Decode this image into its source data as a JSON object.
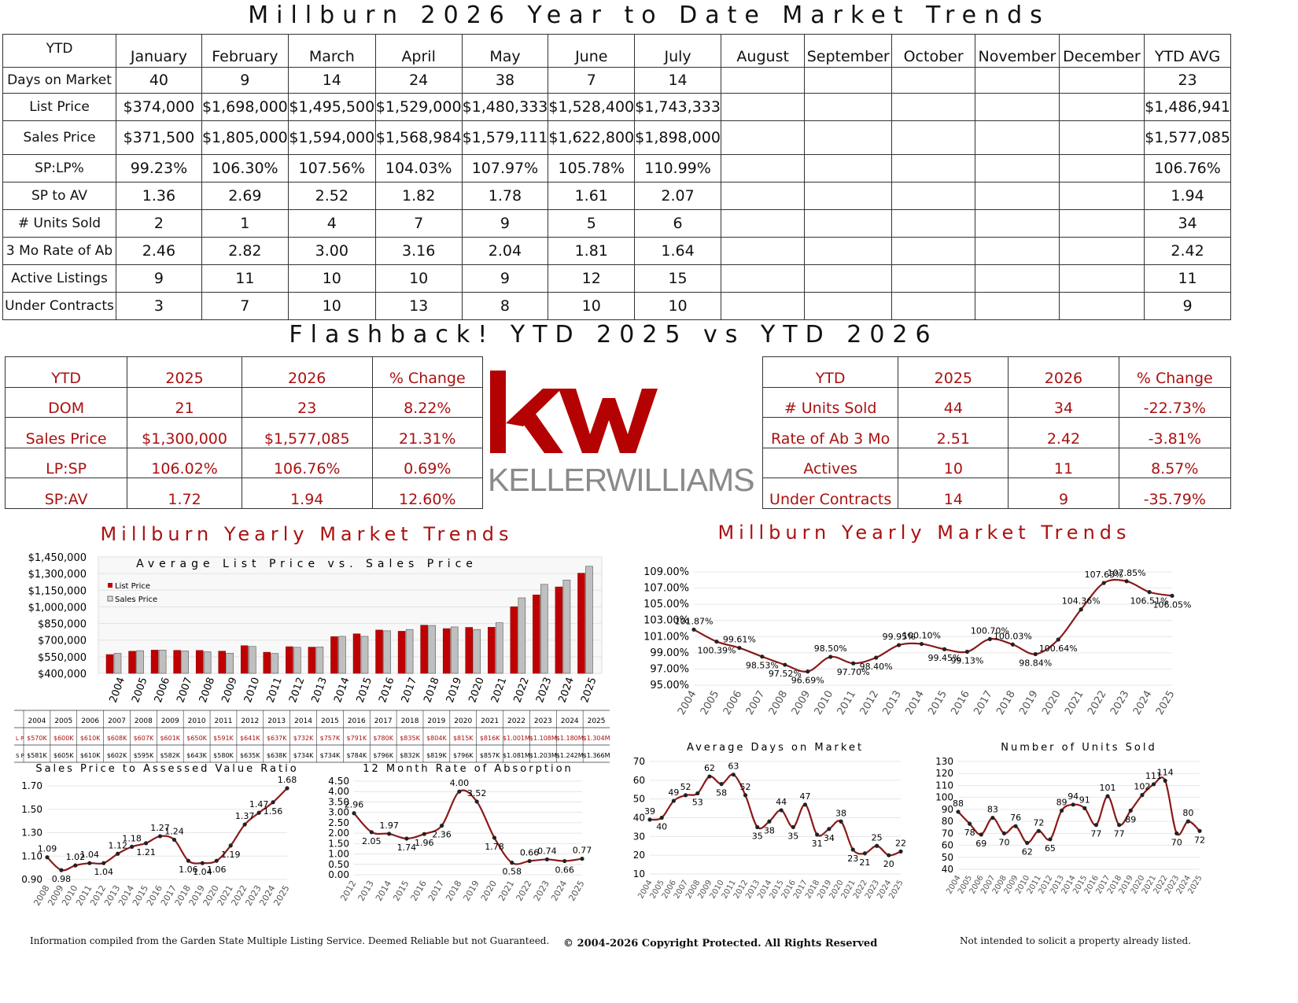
{
  "page_title": "Millburn 2026 Year to Date Market Trends",
  "ytd_table": {
    "corner": "YTD",
    "months": [
      "January",
      "February",
      "March",
      "April",
      "May",
      "June",
      "July",
      "August",
      "September",
      "October",
      "November",
      "December",
      "YTD AVG"
    ],
    "rows": [
      {
        "label": "Days on Market",
        "values": [
          "40",
          "9",
          "14",
          "24",
          "38",
          "7",
          "14",
          "",
          "",
          "",
          "",
          "",
          "23"
        ]
      },
      {
        "label": "List Price",
        "values": [
          "$374,000",
          "$1,698,000",
          "$1,495,500",
          "$1,529,000",
          "$1,480,333",
          "$1,528,400",
          "$1,743,333",
          "",
          "",
          "",
          "",
          "",
          "$1,486,941"
        ]
      },
      {
        "label": "Sales Price",
        "values": [
          "$371,500",
          "$1,805,000",
          "$1,594,000",
          "$1,568,984",
          "$1,579,111",
          "$1,622,800",
          "$1,898,000",
          "",
          "",
          "",
          "",
          "",
          "$1,577,085"
        ]
      },
      {
        "label": "SP:LP%",
        "values": [
          "99.23%",
          "106.30%",
          "107.56%",
          "104.03%",
          "107.97%",
          "105.78%",
          "110.99%",
          "",
          "",
          "",
          "",
          "",
          "106.76%"
        ]
      },
      {
        "label": "SP to AV",
        "values": [
          "1.36",
          "2.69",
          "2.52",
          "1.82",
          "1.78",
          "1.61",
          "2.07",
          "",
          "",
          "",
          "",
          "",
          "1.94"
        ]
      },
      {
        "label": "# Units Sold",
        "values": [
          "2",
          "1",
          "4",
          "7",
          "9",
          "5",
          "6",
          "",
          "",
          "",
          "",
          "",
          "34"
        ]
      },
      {
        "label": "3 Mo Rate of Ab",
        "values": [
          "2.46",
          "2.82",
          "3.00",
          "3.16",
          "2.04",
          "1.81",
          "1.64",
          "",
          "",
          "",
          "",
          "",
          "2.42"
        ]
      },
      {
        "label": "Active Listings",
        "values": [
          "9",
          "11",
          "10",
          "10",
          "9",
          "12",
          "15",
          "",
          "",
          "",
          "",
          "",
          "11"
        ]
      },
      {
        "label": "Under Contracts",
        "values": [
          "3",
          "7",
          "10",
          "13",
          "8",
          "10",
          "10",
          "",
          "",
          "",
          "",
          "",
          "9"
        ]
      }
    ]
  },
  "flashback_title": "Flashback! YTD 2025 vs YTD 2026",
  "left_compare": {
    "headers": [
      "YTD",
      "2025",
      "2026",
      "% Change"
    ],
    "rows": [
      [
        "DOM",
        "21",
        "23",
        "8.22%"
      ],
      [
        "Sales Price",
        "$1,300,000",
        "$1,577,085",
        "21.31%"
      ],
      [
        "LP:SP",
        "106.02%",
        "106.76%",
        "0.69%"
      ],
      [
        "SP:AV",
        "1.72",
        "1.94",
        "12.60%"
      ]
    ]
  },
  "right_compare": {
    "headers": [
      "YTD",
      "2025",
      "2026",
      "% Change"
    ],
    "rows": [
      [
        "# Units Sold",
        "44",
        "34",
        "-22.73%"
      ],
      [
        "Rate of Ab 3 Mo",
        "2.51",
        "2.42",
        "-3.81%"
      ],
      [
        "Actives",
        "10",
        "11",
        "8.57%"
      ],
      [
        "Under Contracts",
        "14",
        "9",
        "-35.79%"
      ]
    ]
  },
  "logo": {
    "kw": "kw",
    "name": "KELLERWILLIAMS",
    "registered": "®",
    "brand_color": "#b40101"
  },
  "colors": {
    "accent": "#a11",
    "list_bar": "#c00000",
    "sales_bar": "#bfbfbf",
    "line": "#8b1a1a"
  },
  "chart_data": [
    {
      "id": "list-vs-sales",
      "type": "bar",
      "title": "Millburn Yearly Market Trends",
      "subtitle": "Average List Price vs. Sales Price",
      "categories": [
        "2004",
        "2005",
        "2006",
        "2007",
        "2008",
        "2009",
        "2010",
        "2011",
        "2012",
        "2013",
        "2014",
        "2015",
        "2016",
        "2017",
        "2018",
        "2019",
        "2020",
        "2021",
        "2022",
        "2023",
        "2024",
        "2025"
      ],
      "series": [
        {
          "name": "List Price",
          "values": [
            570000,
            600000,
            610000,
            608000,
            607000,
            601000,
            650000,
            591000,
            641000,
            637000,
            732000,
            757000,
            791000,
            780000,
            835000,
            804000,
            815000,
            816000,
            1001000,
            1108000,
            1180000,
            1304000
          ],
          "labels": [
            "$570K",
            "$600K",
            "$610K",
            "$608K",
            "$607K",
            "$601K",
            "$650K",
            "$591K",
            "$641K",
            "$637K",
            "$732K",
            "$757K",
            "$791K",
            "$780K",
            "$835K",
            "$804K",
            "$815K",
            "$816K",
            "$1.001M",
            "$1.108M",
            "$1.180M",
            "$1.304M"
          ]
        },
        {
          "name": "Sales Price",
          "values": [
            581000,
            605000,
            610000,
            602000,
            595000,
            582000,
            643000,
            580000,
            635000,
            638000,
            734000,
            734000,
            784000,
            796000,
            832000,
            819000,
            796000,
            857000,
            1081000,
            1203000,
            1242000,
            1366000
          ],
          "labels": [
            "$581K",
            "$605K",
            "$610K",
            "$602K",
            "$595K",
            "$582K",
            "$643K",
            "$580K",
            "$635K",
            "$638K",
            "$734K",
            "$734K",
            "$784K",
            "$796K",
            "$832K",
            "$819K",
            "$796K",
            "$857K",
            "$1.081M",
            "$1.203M",
            "$1.242M",
            "$1.366M"
          ]
        }
      ],
      "table_row_labels": [
        "L P",
        "S P"
      ],
      "ylim": [
        400000,
        1450000
      ],
      "yticks": [
        "$400,000",
        "$550,000",
        "$700,000",
        "$850,000",
        "$1,000,000",
        "$1,150,000",
        "$1,300,000",
        "$1,450,000"
      ]
    },
    {
      "id": "sp-lp-ratio",
      "type": "line",
      "title": "Millburn Yearly Market Trends",
      "x": [
        "2004",
        "2005",
        "2006",
        "2007",
        "2008",
        "2009",
        "2010",
        "2011",
        "2012",
        "2013",
        "2014",
        "2015",
        "2016",
        "2017",
        "2018",
        "2019",
        "2020",
        "2021",
        "2022",
        "2023",
        "2024",
        "2025"
      ],
      "values": [
        101.87,
        100.39,
        99.61,
        98.53,
        97.52,
        96.69,
        98.5,
        97.7,
        98.4,
        99.95,
        100.1,
        99.45,
        99.13,
        100.7,
        100.03,
        98.84,
        100.64,
        104.36,
        107.63,
        107.85,
        106.51,
        106.05
      ],
      "labels": [
        "101.87%",
        "100.39%",
        "99.61%",
        "98.53%",
        "97.52%",
        "96.69%",
        "98.50%",
        "97.70%",
        "98.40%",
        "99.95%",
        "100.10%",
        "99.45%",
        "99.13%",
        "100.70%",
        "100.03%",
        "98.84%",
        "100.64%",
        "104.36%",
        "107.63%",
        "107.85%",
        "106.51%",
        "106.05%"
      ],
      "ylim": [
        95,
        109
      ],
      "yticks": [
        "95.00%",
        "97.00%",
        "99.00%",
        "101.00%",
        "103.00%",
        "105.00%",
        "107.00%",
        "109.00%"
      ]
    },
    {
      "id": "sp-av-ratio",
      "type": "line",
      "title": "Sales Price to Assessed Value Ratio",
      "x": [
        "2008",
        "2009",
        "2010",
        "2011",
        "2012",
        "2013",
        "2014",
        "2015",
        "2016",
        "2017",
        "2018",
        "2019",
        "2020",
        "2021",
        "2022",
        "2023",
        "2024",
        "2025"
      ],
      "values": [
        1.09,
        0.98,
        1.02,
        1.04,
        1.04,
        1.12,
        1.18,
        1.21,
        1.27,
        1.24,
        1.06,
        1.04,
        1.06,
        1.19,
        1.37,
        1.47,
        1.56,
        1.68
      ],
      "labels": [
        "1.09",
        "0.98",
        "1.02",
        "1.04",
        "1.04",
        "1.12",
        "1.18",
        "1.21",
        "1.27",
        "1.24",
        "1.06",
        "1.04",
        "1.06",
        "1.19",
        "1.37",
        "1.47",
        "1.56",
        "1.68"
      ],
      "ylim": [
        0.9,
        1.7
      ],
      "yticks": [
        "0.90",
        "1.10",
        "1.30",
        "1.50",
        "1.70"
      ]
    },
    {
      "id": "absorption",
      "type": "line",
      "title": "12 Month Rate of Absorption",
      "x": [
        "2012",
        "2013",
        "2014",
        "2015",
        "2016",
        "2017",
        "2018",
        "2019",
        "2020",
        "2021",
        "2022",
        "2023",
        "2024",
        "2025"
      ],
      "values": [
        2.96,
        2.05,
        1.97,
        1.74,
        1.96,
        2.36,
        4.0,
        3.52,
        1.78,
        0.58,
        0.66,
        0.74,
        0.66,
        0.77
      ],
      "labels": [
        "2.96",
        "2.05",
        "1.97",
        "1.74",
        "1.96",
        "2.36",
        "4.00",
        "3.52",
        "1.78",
        "0.58",
        "0.66",
        "0.74",
        "0.66",
        "0.77"
      ],
      "ylim": [
        0,
        4.5
      ],
      "yticks": [
        "0.00",
        "0.50",
        "1.00",
        "1.50",
        "2.00",
        "2.50",
        "3.00",
        "3.50",
        "4.00",
        "4.50"
      ]
    },
    {
      "id": "days-on-market",
      "type": "line",
      "title": "Average Days on Market",
      "x": [
        "2004",
        "2005",
        "2006",
        "2007",
        "2008",
        "2009",
        "2010",
        "2011",
        "2012",
        "2013",
        "2014",
        "2015",
        "2016",
        "2017",
        "2018",
        "2019",
        "2020",
        "2021",
        "2022",
        "2023",
        "2024",
        "2025"
      ],
      "values": [
        39,
        40,
        49,
        52,
        53,
        62,
        58,
        63,
        52,
        35,
        38,
        44,
        35,
        47,
        31,
        34,
        38,
        23,
        21,
        25,
        20,
        22
      ],
      "labels": [
        "39",
        "40",
        "49",
        "52",
        "53",
        "62",
        "58",
        "63",
        "52",
        "35",
        "38",
        "44",
        "35",
        "47",
        "31",
        "34",
        "38",
        "23",
        "21",
        "25",
        "20",
        "22"
      ],
      "ylim": [
        10,
        70
      ],
      "yticks": [
        "10",
        "20",
        "30",
        "40",
        "50",
        "60",
        "70"
      ]
    },
    {
      "id": "units-sold",
      "type": "line",
      "title": "Number of Units Sold",
      "x": [
        "2004",
        "2005",
        "2006",
        "2007",
        "2008",
        "2009",
        "2010",
        "2011",
        "2012",
        "2013",
        "2014",
        "2015",
        "2016",
        "2017",
        "2018",
        "2019",
        "2020",
        "2021",
        "2022",
        "2023",
        "2024",
        "2025"
      ],
      "values": [
        88,
        78,
        69,
        83,
        70,
        76,
        62,
        72,
        65,
        89,
        94,
        91,
        77,
        101,
        77,
        89,
        102,
        111,
        114,
        70,
        80,
        72
      ],
      "labels": [
        "88",
        "78",
        "69",
        "83",
        "70",
        "76",
        "62",
        "72",
        "65",
        "89",
        "94",
        "91",
        "77",
        "101",
        "77",
        "89",
        "102",
        "111",
        "114",
        "70",
        "80",
        "72"
      ],
      "ylim": [
        40,
        130
      ],
      "yticks": [
        "40",
        "50",
        "60",
        "70",
        "80",
        "90",
        "100",
        "110",
        "120",
        "130"
      ]
    }
  ],
  "footer": {
    "left": "Information compiled from the Garden State Multiple Listing Service.  Deemed Reliable but not Guaranteed.",
    "center": "© 2004-2026 Copyright Protected.  All Rights Reserved",
    "right": "Not intended to solicit a property already listed."
  }
}
